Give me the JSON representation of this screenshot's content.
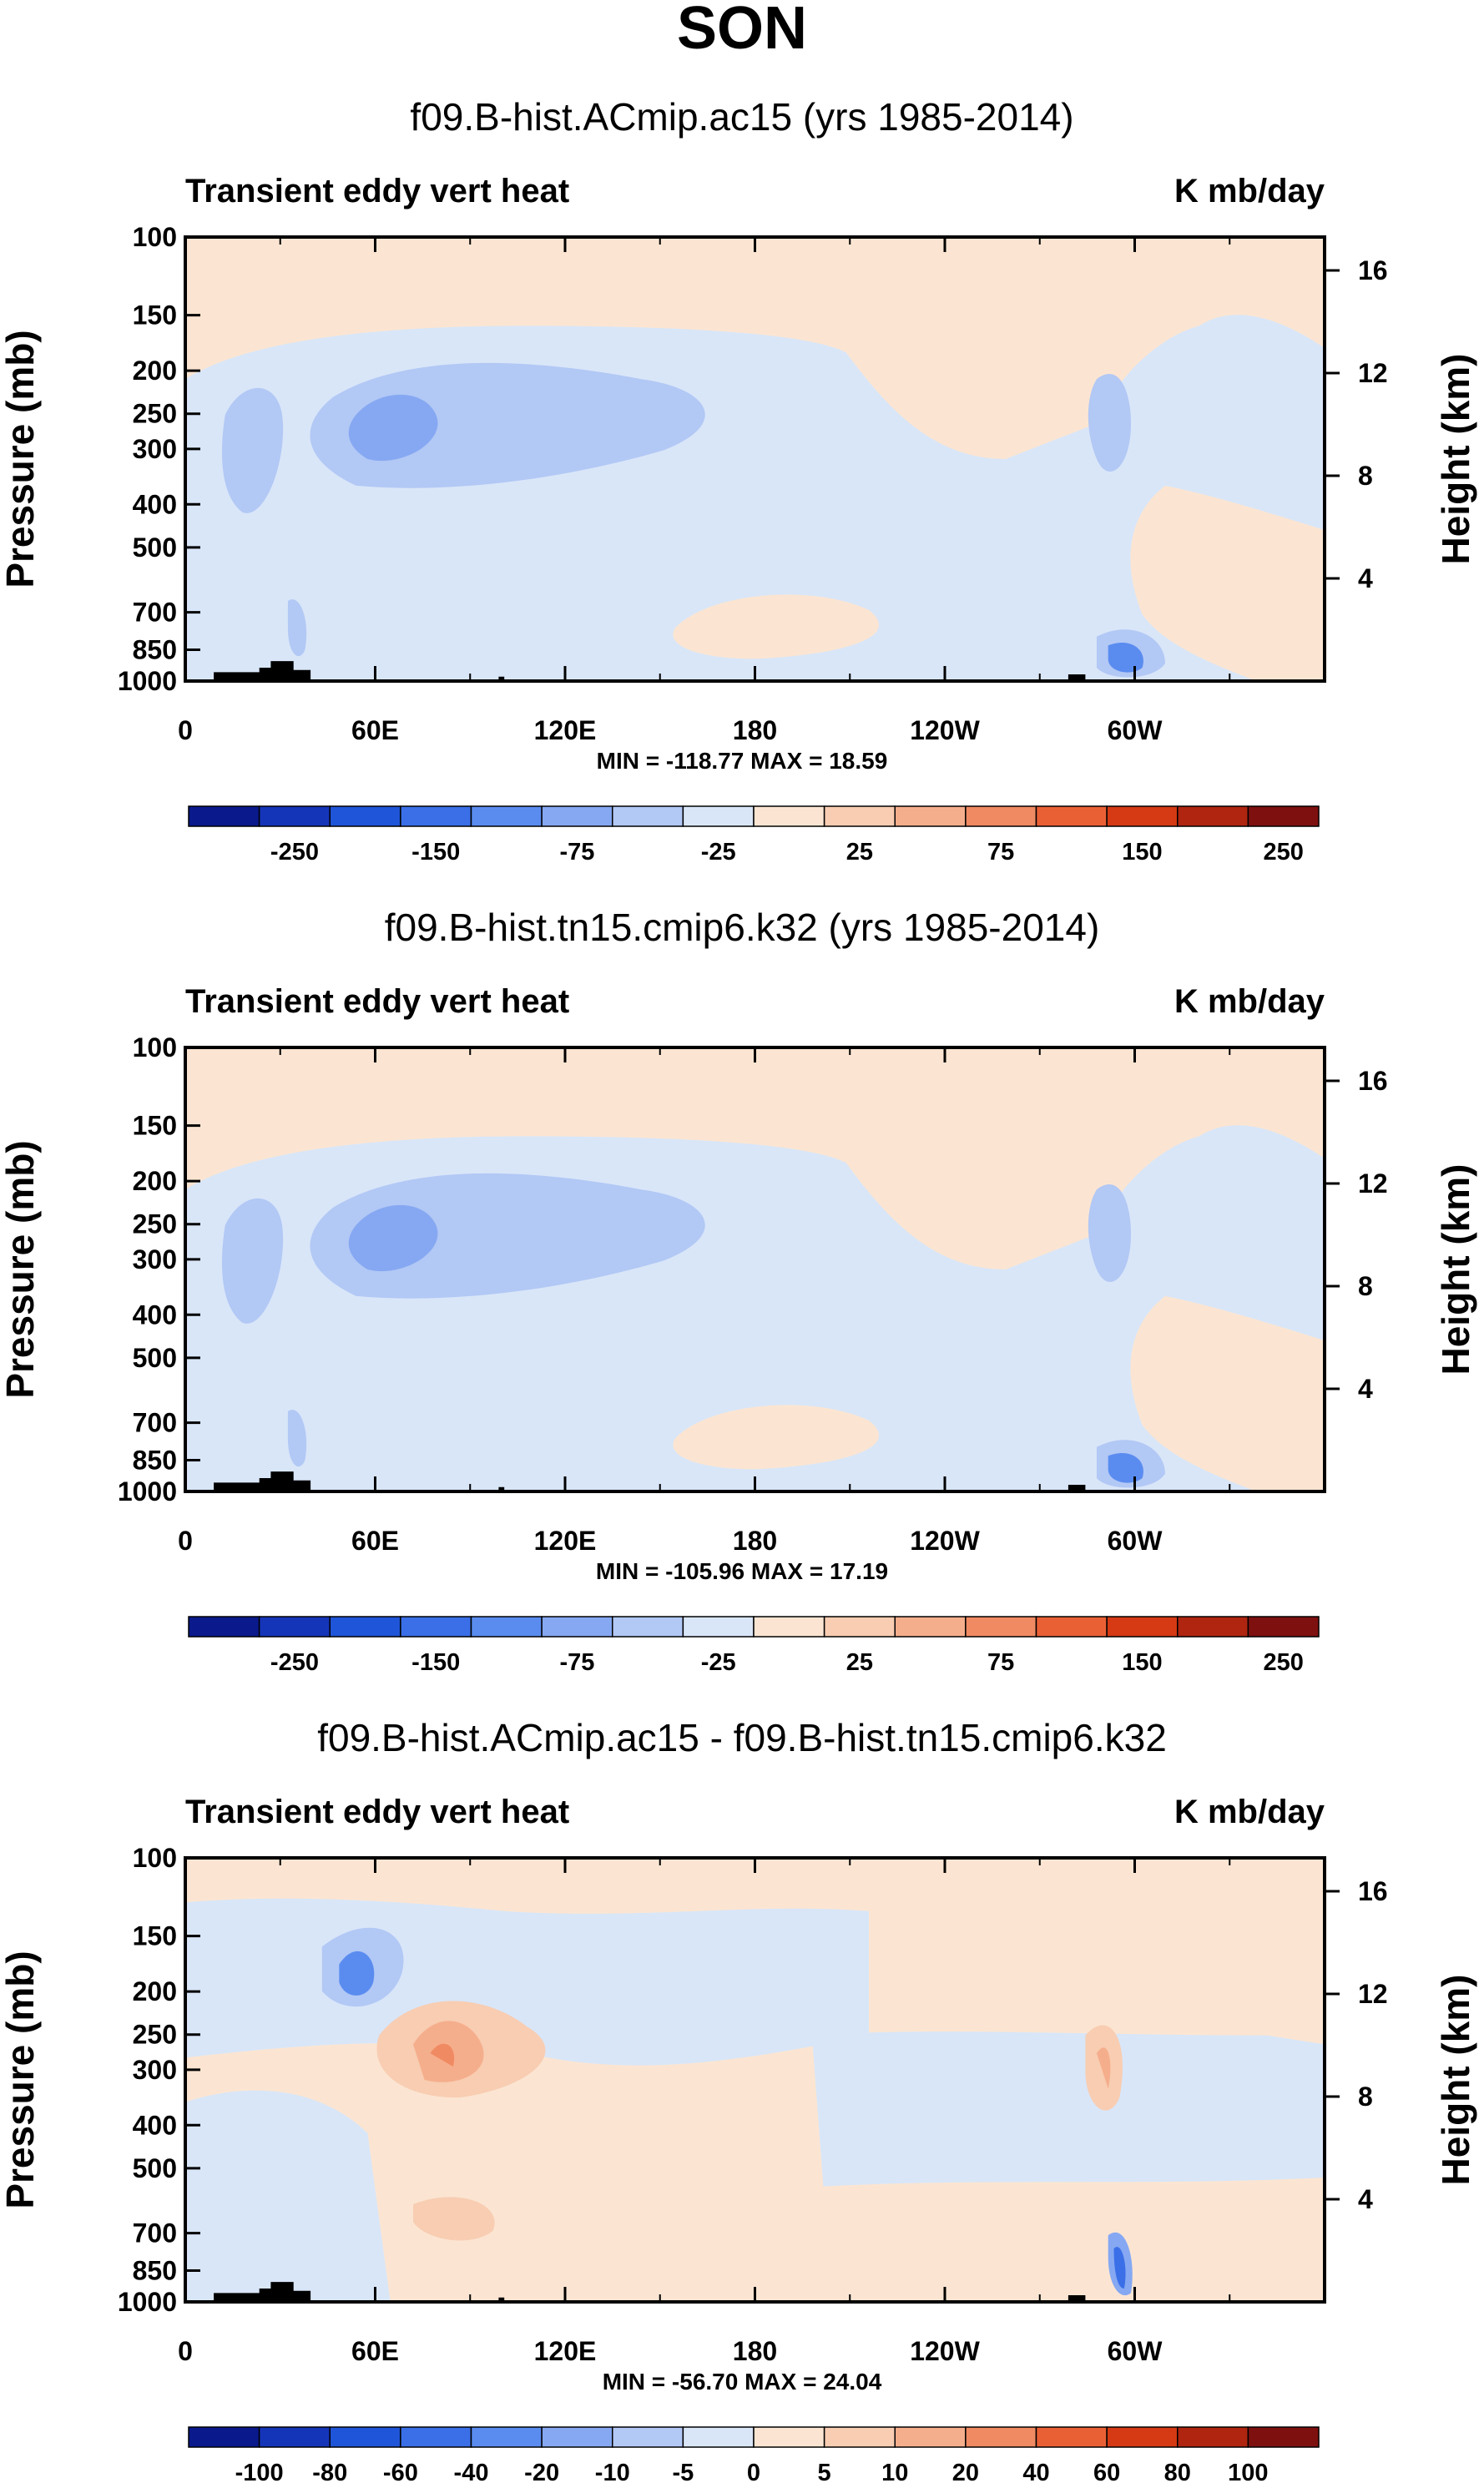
{
  "chart_data": {
    "type": "contour",
    "title": "SON",
    "panels": [
      {
        "title": "f09.B-hist.ACmip.ac15 (yrs 1985-2014)",
        "left_label": "Transient eddy vert heat",
        "right_label": "K mb/day",
        "ylabel": "Pressure (mb)",
        "ylabel_right": "Height (km)",
        "xticks": [
          "0",
          "60E",
          "120E",
          "180",
          "120W",
          "60W"
        ],
        "yticks": [
          "100",
          "150",
          "200",
          "250",
          "300",
          "400",
          "500",
          "700",
          "850",
          "1000"
        ],
        "yticks_right": [
          "16",
          "12",
          "8",
          "4"
        ],
        "stats": "MIN = -118.77  MAX =  18.59",
        "colorbar_labels": [
          "-250",
          "-150",
          "-75",
          "-25",
          "25",
          "75",
          "150",
          "250"
        ],
        "min": -118.77,
        "max": 18.59
      },
      {
        "title": "f09.B-hist.tn15.cmip6.k32 (yrs 1985-2014)",
        "left_label": "Transient eddy vert heat",
        "right_label": "K mb/day",
        "ylabel": "Pressure (mb)",
        "ylabel_right": "Height (km)",
        "xticks": [
          "0",
          "60E",
          "120E",
          "180",
          "120W",
          "60W"
        ],
        "yticks": [
          "100",
          "150",
          "200",
          "250",
          "300",
          "400",
          "500",
          "700",
          "850",
          "1000"
        ],
        "yticks_right": [
          "16",
          "12",
          "8",
          "4"
        ],
        "stats": "MIN = -105.96  MAX =  17.19",
        "colorbar_labels": [
          "-250",
          "-150",
          "-75",
          "-25",
          "25",
          "75",
          "150",
          "250"
        ],
        "min": -105.96,
        "max": 17.19
      },
      {
        "title": "f09.B-hist.ACmip.ac15 - f09.B-hist.tn15.cmip6.k32",
        "left_label": "Transient eddy vert heat",
        "right_label": "K mb/day",
        "ylabel": "Pressure (mb)",
        "ylabel_right": "Height (km)",
        "xticks": [
          "0",
          "60E",
          "120E",
          "180",
          "120W",
          "60W"
        ],
        "yticks": [
          "100",
          "150",
          "200",
          "250",
          "300",
          "400",
          "500",
          "700",
          "850",
          "1000"
        ],
        "yticks_right": [
          "16",
          "12",
          "8",
          "4"
        ],
        "stats": "MIN = -56.70  MAX =  24.04",
        "colorbar_labels": [
          "-100",
          "-80",
          "-60",
          "-40",
          "-20",
          "-10",
          "-5",
          "0",
          "5",
          "10",
          "20",
          "40",
          "60",
          "80",
          "100"
        ],
        "min": -56.7,
        "max": 24.04
      }
    ],
    "colorbar_colors": [
      "#0a1a8c",
      "#1535b8",
      "#1f55d8",
      "#3a6fe8",
      "#5a8cf0",
      "#86a8f2",
      "#b2c8f5",
      "#d9e6f8",
      "#fbe5d2",
      "#f8cdb2",
      "#f5ae8c",
      "#f08a62",
      "#ea6035",
      "#d53a14",
      "#b02510",
      "#7e1010"
    ]
  }
}
